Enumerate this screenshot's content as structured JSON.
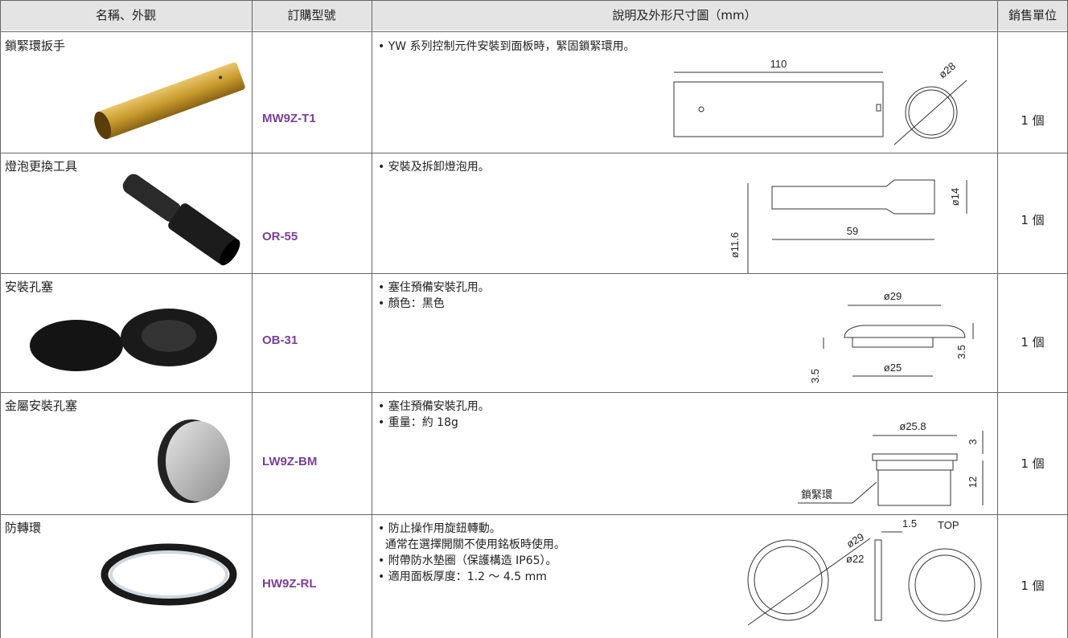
{
  "table": {
    "headers": [
      "名稱、外觀",
      "訂購型號",
      "說明及外形尺寸圖（mm）",
      "銷售單位"
    ],
    "rows": [
      {
        "name": "鎖緊環扳手",
        "model": "MW9Z-T1",
        "notes": [
          "• YW 系列控制元件安裝到面板時，緊固鎖緊環用。"
        ],
        "dims": [
          "110",
          "ø28"
        ],
        "unit": "1 個"
      },
      {
        "name": "燈泡更換工具",
        "model": "OR-55",
        "notes": [
          "• 安裝及拆卸燈泡用。"
        ],
        "dims": [
          "ø11.6",
          "59",
          "ø14"
        ],
        "unit": "1 個"
      },
      {
        "name": "安裝孔塞",
        "model": "OB-31",
        "notes": [
          "• 塞住預備安裝孔用。",
          "• 顏色：黑色"
        ],
        "dims": [
          "ø29",
          "3.5",
          "3.5",
          "ø25"
        ],
        "unit": "1 個"
      },
      {
        "name": "金屬安裝孔塞",
        "model": "LW9Z-BM",
        "notes": [
          "• 塞住預備安裝孔用。",
          "• 重量：約 18g"
        ],
        "dims": [
          "ø25.8",
          "3",
          "12",
          "鎖緊環"
        ],
        "unit": "1 個"
      },
      {
        "name": "防轉環",
        "model": "HW9Z-RL",
        "notes": [
          "• 防止操作用旋鈕轉動。",
          "  通常在選擇開關不使用銘板時使用。",
          "• 附帶防水墊圈（保護構造 IP65）。",
          "• 適用面板厚度：1.2 ～ 4.5 mm"
        ],
        "dims": [
          "1.5",
          "TOP",
          "ø29",
          "ø22"
        ],
        "unit": "1 個"
      }
    ]
  }
}
